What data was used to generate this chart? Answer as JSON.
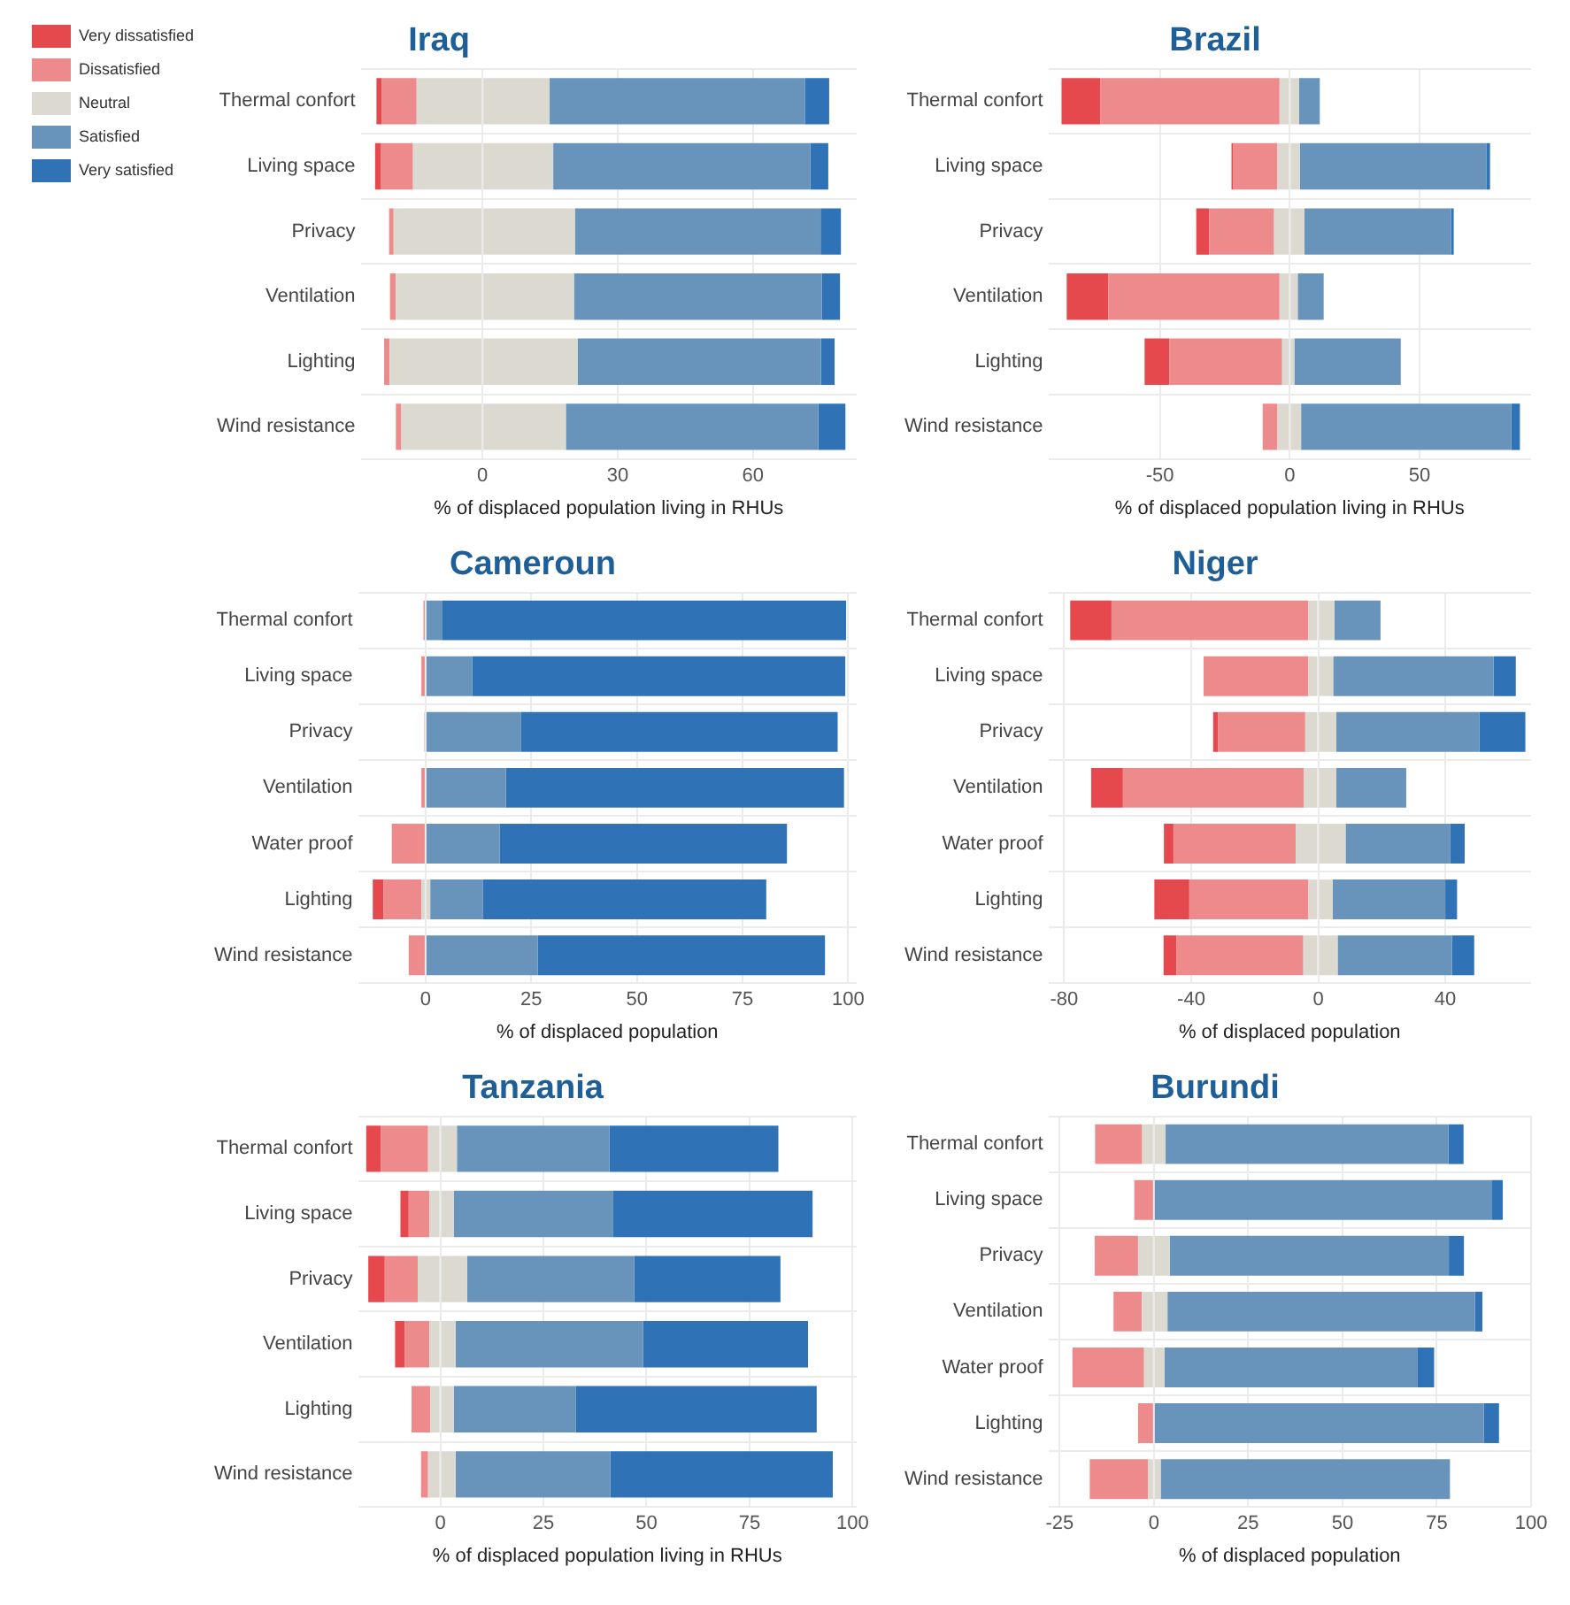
{
  "chart_data": [
    {
      "type": "bar",
      "orientation": "horizontal",
      "stacked": true,
      "title": "Iraq",
      "xlabel": "% of displaced population living in RHUs",
      "categories": [
        "Thermal confort",
        "Living space",
        "Privacy",
        "Ventilation",
        "Lighting",
        "Wind resistance"
      ],
      "series": [
        {
          "name": "Neutral",
          "color": "#dcdad0",
          "values": [
            -14.6,
            -15.4,
            -19.7,
            -19.2,
            -20.6,
            -18
          ]
        },
        {
          "name": "Dissatisfied",
          "color": "#ec8a8c",
          "values": [
            -7.7,
            -7.2,
            -1,
            -1.3,
            -1.2,
            -1.2
          ]
        },
        {
          "name": "Very dissatisfied",
          "color": "#e5484d",
          "values": [
            -1.2,
            -1.2,
            0,
            0,
            0,
            0
          ]
        },
        {
          "color": "#dcdad0",
          "values": [
            14.9,
            15.7,
            20.5,
            20.3,
            21.1,
            18.5
          ]
        },
        {
          "name": "Satisfied",
          "color": "#6894bb",
          "values": [
            56.6,
            57,
            54.5,
            55,
            54,
            56
          ]
        },
        {
          "name": "Very satisfied",
          "color": "#2f72b5",
          "values": [
            5.4,
            4,
            4.5,
            4,
            3,
            6
          ]
        }
      ],
      "xlim": [
        -27,
        83
      ],
      "xticks": [
        0,
        30,
        60
      ],
      "grid": true,
      "legend": "top left"
    },
    {
      "type": "bar",
      "orientation": "horizontal",
      "stacked": true,
      "title": "Brazil",
      "xlabel": "% of displaced population living in RHUs",
      "categories": [
        "Thermal confort",
        "Living space",
        "Privacy",
        "Ventilation",
        "Lighting",
        "Wind resistance"
      ],
      "series": [
        {
          "color": "#dcdad0",
          "values": [
            -3.9,
            -4.7,
            -6,
            -3.9,
            -2.9,
            -4.7
          ]
        },
        {
          "color": "#ec8a8c",
          "values": [
            -69,
            -17,
            -25,
            -66,
            -43.5,
            -5.7
          ]
        },
        {
          "color": "#e5484d",
          "values": [
            -15,
            -0.7,
            -5,
            -16,
            -9.5,
            0
          ]
        },
        {
          "color": "#dcdad0",
          "values": [
            3.6,
            3.9,
            5.7,
            3.1,
            1.8,
            4.4
          ]
        },
        {
          "color": "#6894bb",
          "values": [
            8,
            72,
            56.5,
            10,
            41,
            81
          ]
        },
        {
          "color": "#2f72b5",
          "values": [
            0,
            1.3,
            1,
            0,
            0,
            3.3
          ]
        }
      ],
      "xlim": [
        -93,
        93
      ],
      "xticks": [
        -50,
        0,
        50
      ],
      "grid": true
    },
    {
      "type": "bar",
      "orientation": "horizontal",
      "stacked": true,
      "title": "Cameroun",
      "xlabel": "% of displaced population",
      "categories": [
        "Thermal confort",
        "Living space",
        "Privacy",
        "Ventilation",
        "Water proof",
        "Lighting",
        "Wind resistance"
      ],
      "series": [
        {
          "color": "#dcdad0",
          "values": [
            0,
            0,
            0,
            0,
            0,
            -1,
            0
          ]
        },
        {
          "color": "#ec8a8c",
          "values": [
            -0.5,
            -1,
            -0.3,
            -1,
            -8,
            -9,
            -4
          ]
        },
        {
          "color": "#e5484d",
          "values": [
            0,
            0,
            0,
            0,
            0,
            -2.5,
            0
          ]
        },
        {
          "color": "#dcdad0",
          "values": [
            0,
            0,
            0,
            0,
            0,
            1.1,
            0
          ]
        },
        {
          "color": "#6894bb",
          "values": [
            4,
            11,
            22.5,
            19,
            17.5,
            12.5,
            26.5
          ]
        },
        {
          "color": "#2f72b5",
          "values": [
            95.5,
            88.3,
            75,
            80,
            68,
            67,
            68
          ]
        }
      ],
      "xlim": [
        -16,
        102
      ],
      "xticks": [
        0,
        25,
        50,
        75,
        100
      ],
      "grid": true
    },
    {
      "type": "bar",
      "orientation": "horizontal",
      "stacked": true,
      "title": "Niger",
      "xlabel": "% of displaced population",
      "categories": [
        "Thermal confort",
        "Living space",
        "Privacy",
        "Ventilation",
        "Water proof",
        "Lighting",
        "Wind resistance"
      ],
      "series": [
        {
          "color": "#dcdad0",
          "values": [
            -3.1,
            -3.1,
            -4.1,
            -4.5,
            -7.1,
            -3.1,
            -4.7
          ]
        },
        {
          "color": "#ec8a8c",
          "values": [
            -62,
            -33,
            -27.5,
            -57,
            -38.5,
            -37.5,
            -40
          ]
        },
        {
          "color": "#e5484d",
          "values": [
            -13,
            0,
            -1.5,
            -10,
            -3,
            -11,
            -4
          ]
        },
        {
          "color": "#dcdad0",
          "values": [
            5.1,
            4.7,
            5.7,
            5.7,
            8.6,
            4.5,
            6.1
          ]
        },
        {
          "color": "#6894bb",
          "values": [
            14.5,
            50.5,
            45,
            22,
            33,
            35.5,
            36
          ]
        },
        {
          "color": "#2f72b5",
          "values": [
            0,
            7,
            14.5,
            0,
            4.5,
            3.7,
            7
          ]
        }
      ],
      "xlim": [
        -85,
        67
      ],
      "xticks": [
        -80,
        -40,
        0,
        40
      ],
      "grid": true
    },
    {
      "type": "bar",
      "orientation": "horizontal",
      "stacked": true,
      "title": "Tanzania",
      "xlabel": "% of displaced population living in RHUs",
      "categories": [
        "Thermal confort",
        "Living space",
        "Privacy",
        "Ventilation",
        "Lighting",
        "Wind resistance"
      ],
      "series": [
        {
          "color": "#dcdad0",
          "values": [
            -3,
            -2.7,
            -5.5,
            -2.7,
            -2.5,
            -3
          ]
        },
        {
          "color": "#ec8a8c",
          "values": [
            -11.5,
            -5,
            -8,
            -6,
            -4.5,
            -1.7
          ]
        },
        {
          "color": "#e5484d",
          "values": [
            -3.5,
            -2,
            -4,
            -2.3,
            0,
            0
          ]
        },
        {
          "color": "#dcdad0",
          "values": [
            4,
            3.3,
            6.5,
            3.7,
            3.3,
            3.7
          ]
        },
        {
          "color": "#6894bb",
          "values": [
            37,
            38.5,
            40.5,
            45.5,
            29.5,
            37.5
          ]
        },
        {
          "color": "#2f72b5",
          "values": [
            41,
            48.5,
            35.5,
            40,
            58.5,
            54
          ]
        }
      ],
      "xlim": [
        -20,
        101
      ],
      "xticks": [
        0,
        25,
        50,
        75,
        100
      ],
      "grid": true
    },
    {
      "type": "bar",
      "orientation": "horizontal",
      "stacked": true,
      "title": "Burundi",
      "xlabel": "% of displaced population",
      "categories": [
        "Thermal confort",
        "Living space",
        "Privacy",
        "Ventilation",
        "Water proof",
        "Lighting",
        "Wind resistance"
      ],
      "series": [
        {
          "color": "#dcdad0",
          "values": [
            -3.1,
            0,
            -4.2,
            -3.2,
            -2.6,
            0,
            -1.5
          ]
        },
        {
          "color": "#ec8a8c",
          "values": [
            -12.5,
            -5.2,
            -11.5,
            -7.5,
            -19,
            -4.2,
            -15.5
          ]
        },
        {
          "color": "#dcdad0",
          "values": [
            3.1,
            0,
            4.2,
            3.6,
            2.8,
            0,
            1.8
          ]
        },
        {
          "color": "#6894bb",
          "values": [
            75,
            89.5,
            74,
            81.5,
            67,
            87.5,
            76.7
          ]
        },
        {
          "color": "#2f72b5",
          "values": [
            4,
            3,
            4,
            2,
            4.5,
            4,
            0
          ]
        }
      ],
      "xlim": [
        -28,
        100
      ],
      "xticks": [
        -25,
        0,
        25,
        50,
        75,
        100
      ],
      "grid": true
    }
  ]
}
